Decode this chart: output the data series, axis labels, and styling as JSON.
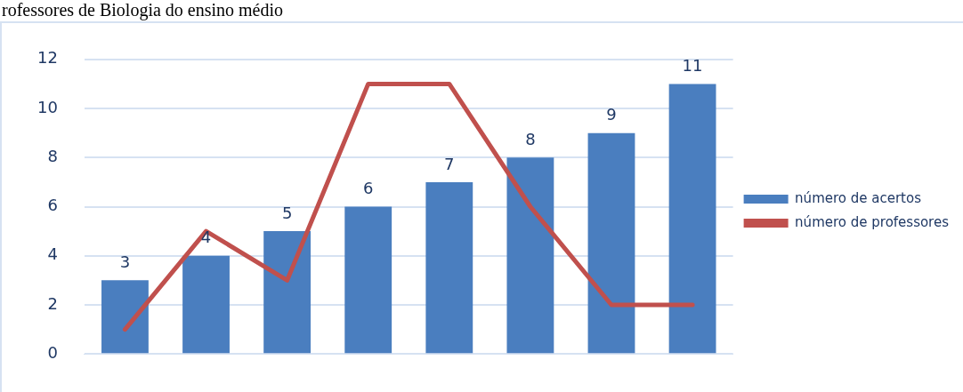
{
  "chart_data": {
    "type": "bar",
    "title": "rofessores de Biologia do ensino médio",
    "categories": [
      null,
      null,
      null,
      null,
      null,
      null,
      null,
      null
    ],
    "series": [
      {
        "name": "número de acertos",
        "color": "#4a7ebf",
        "values": [
          3,
          4,
          5,
          6,
          7,
          8,
          9,
          11
        ],
        "value_labels": [
          "3",
          "4",
          "5",
          "6",
          "7",
          "8",
          "9",
          "11"
        ]
      },
      {
        "name": "número de professores",
        "type": "line",
        "color": "#c0504d",
        "values": [
          1,
          5,
          3,
          11,
          11,
          6,
          2,
          2
        ]
      }
    ],
    "ylim": [
      0,
      12
    ],
    "yticks": [
      0,
      2,
      4,
      6,
      8,
      10,
      12
    ],
    "grid": "y",
    "legend": "right",
    "marker": "none"
  }
}
